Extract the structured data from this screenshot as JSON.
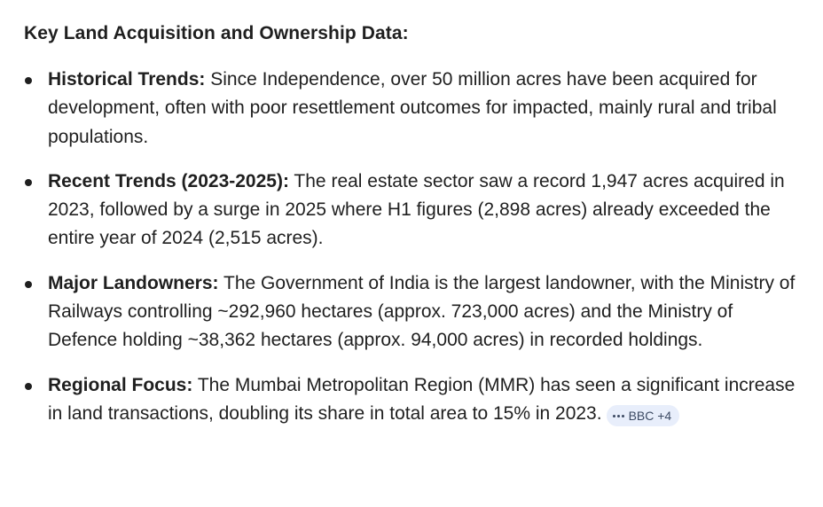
{
  "heading": "Key Land Acquisition and Ownership Data:",
  "items": [
    {
      "title": "Historical Trends:",
      "text": " Since Independence, over 50 million acres have been acquired for development, often with poor resettlement outcomes for impacted, mainly rural and tribal populations."
    },
    {
      "title": "Recent Trends (2023-2025):",
      "text": " The real estate sector saw a record 1,947 acres acquired in 2023, followed by a surge in 2025 where H1 figures (2,898 acres) already exceeded the entire year of 2024 (2,515 acres)."
    },
    {
      "title": "Major Landowners:",
      "text": " The Government of India is the largest landowner, with the Ministry of Railways controlling ~292,960 hectares (approx. 723,000 acres) and the Ministry of Defence holding ~38,362 hectares (approx. 94,000 acres) in recorded holdings."
    },
    {
      "title": "Regional Focus:",
      "text": " The Mumbai Metropolitan Region (MMR) has seen a significant increase in land transactions, doubling its share in total area to 15% in 2023."
    }
  ],
  "source_chip": {
    "label": "BBC +4",
    "icon": "more-dots-icon"
  }
}
